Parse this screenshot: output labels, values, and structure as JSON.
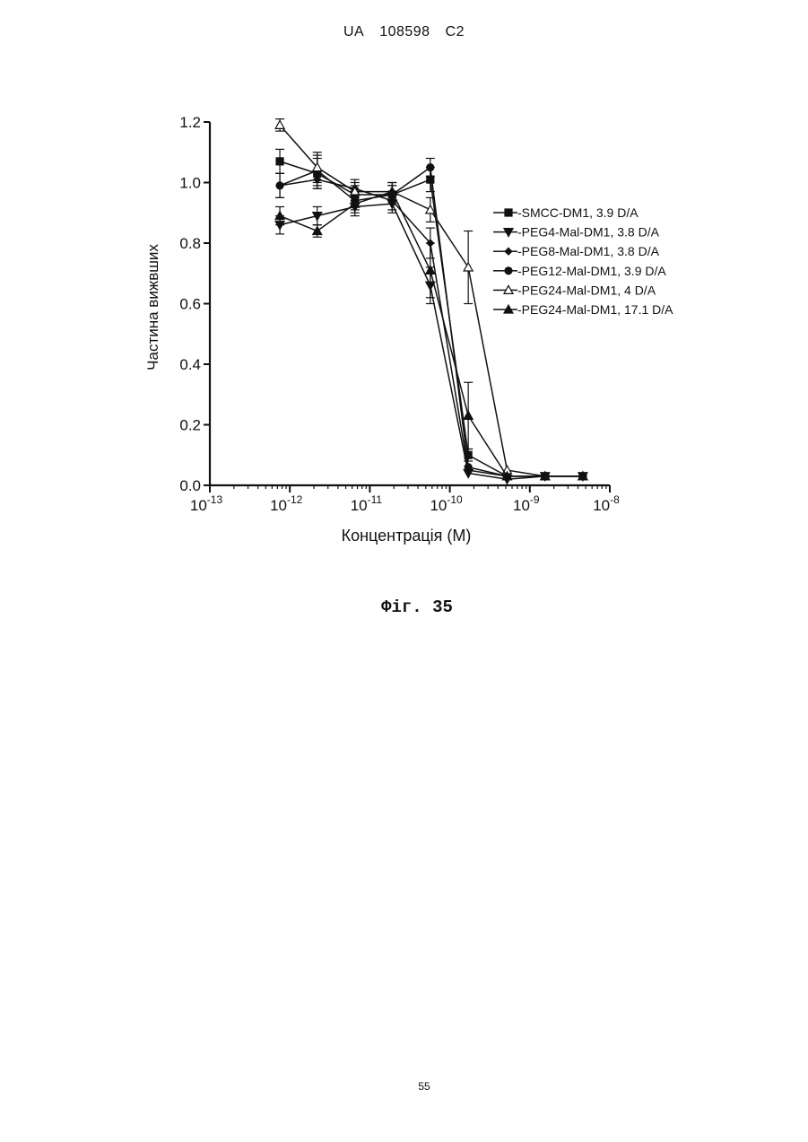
{
  "header": {
    "country": "UA",
    "number": "108598",
    "kind": "C2"
  },
  "figure_caption": "Фіг. 35",
  "page_number": "55",
  "chart_data": {
    "type": "line",
    "xlabel": "Концентрація (М)",
    "ylabel": "Частина вижвших",
    "x_scale": "log",
    "xlim": [
      "10^-13",
      "10^-8"
    ],
    "x_tick_labels": [
      {
        "base": "10",
        "exp": "-13"
      },
      {
        "base": "10",
        "exp": "-12"
      },
      {
        "base": "10",
        "exp": "-11"
      },
      {
        "base": "10",
        "exp": "-10"
      },
      {
        "base": "10",
        "exp": "-9"
      },
      {
        "base": "10",
        "exp": "-8"
      }
    ],
    "ylim": [
      0.0,
      1.2
    ],
    "y_tick_labels": [
      "0.0",
      "0.2",
      "0.4",
      "0.6",
      "0.8",
      "1.0",
      "1.2"
    ],
    "grid": false,
    "legend_position": "right",
    "x": [
      7.5e-13,
      2.2e-12,
      6.5e-12,
      1.9e-11,
      5.7e-11,
      1.7e-10,
      5.2e-10,
      1.55e-09,
      4.6e-09
    ],
    "series": [
      {
        "name": "-SMCC-DM1, 3.9 D/A",
        "marker": "square-filled",
        "values": [
          1.07,
          1.03,
          0.96,
          0.96,
          1.01,
          0.1,
          0.03,
          0.03,
          0.03
        ],
        "errors": [
          0.04,
          0.05,
          0.03,
          0.03,
          0.04,
          0.02,
          0.01,
          0.01,
          0.01
        ]
      },
      {
        "name": "-PEG4-Mal-DM1, 3.8 D/A",
        "marker": "triangle-down-filled",
        "values": [
          0.86,
          0.89,
          0.92,
          0.93,
          0.66,
          0.04,
          0.02,
          0.03,
          0.03
        ],
        "errors": [
          0.03,
          0.03,
          0.03,
          0.03,
          0.06,
          0.01,
          0.01,
          0.01,
          0.01
        ]
      },
      {
        "name": "-PEG8-Mal-DM1, 3.8 D/A",
        "marker": "diamond-filled",
        "values": [
          0.99,
          1.01,
          0.98,
          0.94,
          0.8,
          0.05,
          0.03,
          0.03,
          0.03
        ],
        "errors": [
          0.04,
          0.03,
          0.03,
          0.03,
          0.05,
          0.01,
          0.01,
          0.01,
          0.01
        ]
      },
      {
        "name": "-PEG12-Mal-DM1, 3.9 D/A",
        "marker": "circle-filled",
        "values": [
          0.99,
          1.04,
          0.94,
          0.96,
          1.05,
          0.06,
          0.03,
          0.03,
          0.03
        ],
        "errors": [
          0.04,
          0.05,
          0.03,
          0.03,
          0.03,
          0.01,
          0.01,
          0.01,
          0.01
        ]
      },
      {
        "name": "-PEG24-Mal-DM1, 4 D/A",
        "marker": "triangle-up-open",
        "values": [
          1.19,
          1.05,
          0.97,
          0.97,
          0.91,
          0.72,
          0.05,
          0.03,
          0.03
        ],
        "errors": [
          0.02,
          0.05,
          0.03,
          0.03,
          0.04,
          0.12,
          0.01,
          0.01,
          0.01
        ]
      },
      {
        "name": "-PEG24-Mal-DM1, 17.1 D/A",
        "marker": "triangle-up-filled",
        "values": [
          0.89,
          0.84,
          0.93,
          0.97,
          0.71,
          0.23,
          0.03,
          0.03,
          0.03
        ],
        "errors": [
          0.03,
          0.02,
          0.03,
          0.03,
          0.09,
          0.11,
          0.01,
          0.01,
          0.01
        ]
      }
    ]
  }
}
